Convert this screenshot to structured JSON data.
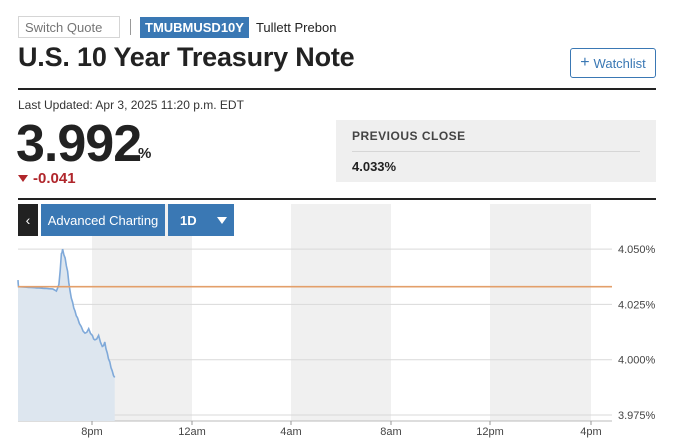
{
  "header": {
    "search_placeholder": "Switch Quote",
    "ticker": "TMUBMUSD10Y",
    "source": "Tullett Prebon",
    "title": "U.S. 10 Year Treasury Note",
    "watchlist_label": "Watchlist"
  },
  "quote": {
    "last_updated": "Last Updated: Apr 3, 2025 11:20 p.m. EDT",
    "price": "3.992",
    "unit": "%",
    "change": "-0.041",
    "change_direction": "down",
    "previous_close_label": "PREVIOUS CLOSE",
    "previous_close_value": "4.033%"
  },
  "chart_controls": {
    "back": "‹",
    "advanced_label": "Advanced Charting",
    "range_label": "1D"
  },
  "colors": {
    "accent": "#3a78b4",
    "negative": "#b0262b",
    "line": "#7fa9d9",
    "area": "#dde6ef",
    "previous_close_line": "#e39f6a"
  },
  "chart_data": {
    "type": "area",
    "x_ticks": [
      "8pm",
      "12am",
      "4am",
      "8am",
      "12pm",
      "4pm"
    ],
    "y_ticks": [
      "4.050%",
      "4.025%",
      "4.000%",
      "3.975%"
    ],
    "ylim": [
      3.975,
      4.055
    ],
    "previous_close": 4.033,
    "series": [
      {
        "values": [
          [
            0.0,
            4.036
          ],
          [
            0.02,
            4.033
          ],
          [
            1.4,
            4.032
          ],
          [
            1.55,
            4.031
          ],
          [
            1.65,
            4.034
          ],
          [
            1.75,
            4.048
          ],
          [
            1.8,
            4.05
          ],
          [
            1.9,
            4.046
          ],
          [
            2.0,
            4.04
          ],
          [
            2.1,
            4.031
          ],
          [
            2.2,
            4.026
          ],
          [
            2.3,
            4.022
          ],
          [
            2.4,
            4.019
          ],
          [
            2.55,
            4.015
          ],
          [
            2.7,
            4.012
          ],
          [
            2.85,
            4.014
          ],
          [
            3.0,
            4.011
          ],
          [
            3.1,
            4.009
          ],
          [
            3.25,
            4.011
          ],
          [
            3.4,
            4.006
          ],
          [
            3.5,
            4.008
          ],
          [
            3.6,
            4.003
          ],
          [
            3.7,
            3.999
          ],
          [
            3.8,
            3.995
          ],
          [
            3.9,
            3.992
          ]
        ]
      }
    ]
  }
}
